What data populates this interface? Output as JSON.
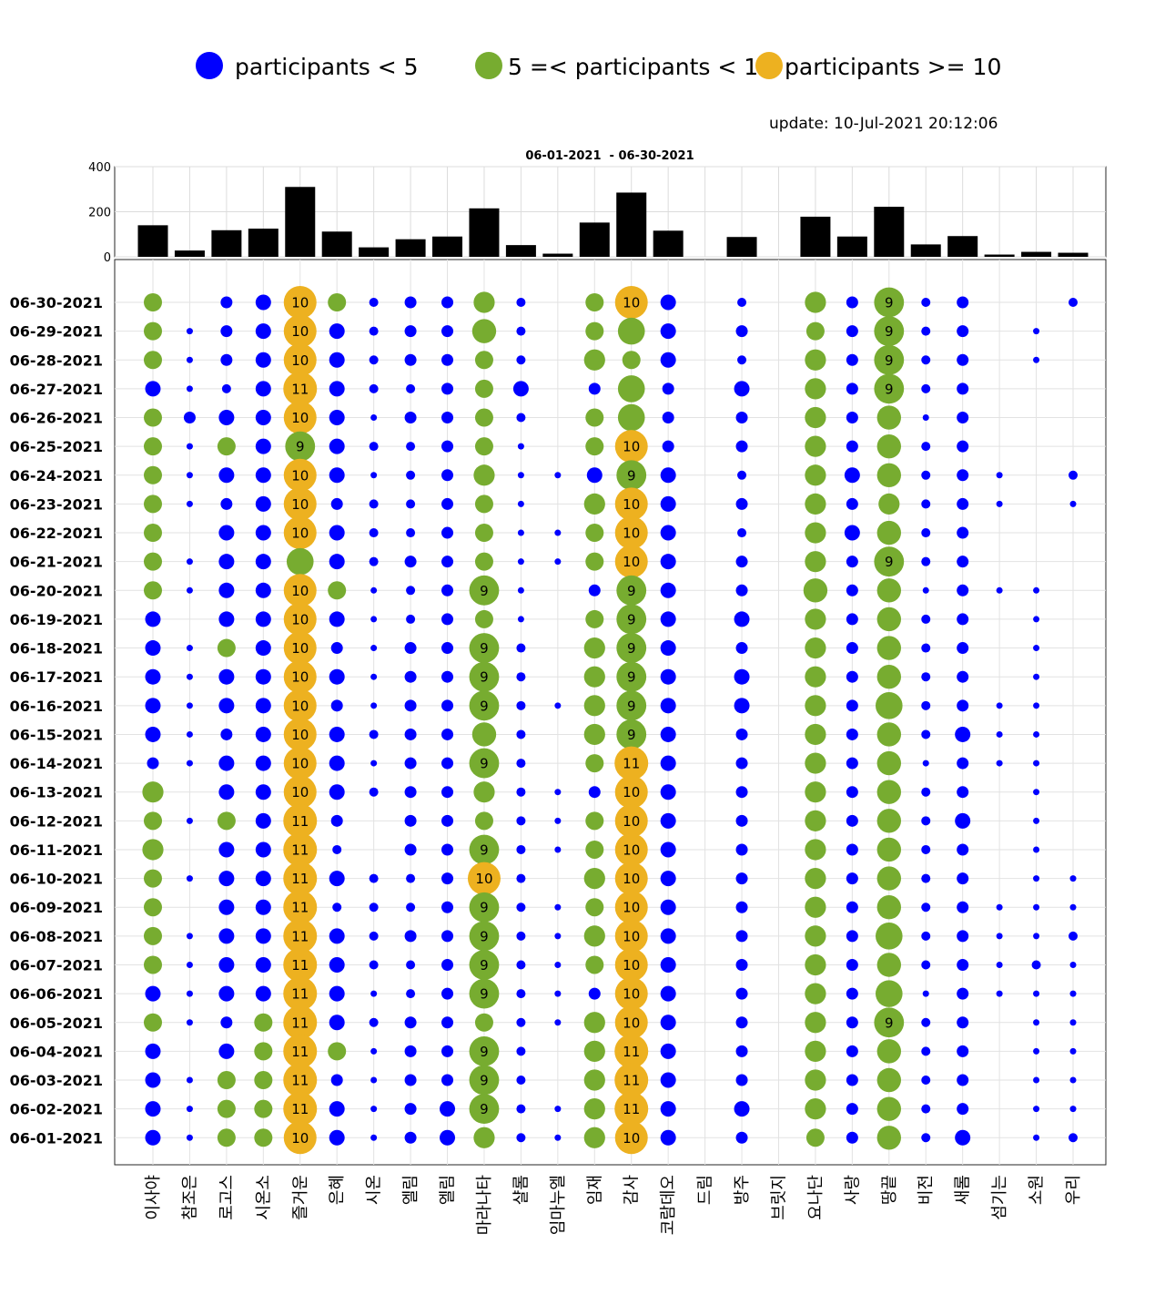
{
  "legend": {
    "items": [
      {
        "label": "participants < 5",
        "color": "#0000ff"
      },
      {
        "label": "5 =< participants < 10",
        "color": "#77ac30"
      },
      {
        "label": "participants >= 10",
        "color": "#edb120"
      }
    ]
  },
  "update_text": "update: 10-Jul-2021 20:12:06",
  "chart_data": [
    {
      "type": "bar",
      "title": "06-01-2021  - 06-30-2021",
      "ylim": [
        0,
        400
      ],
      "yticks": [
        0,
        200,
        400
      ],
      "grid": true,
      "categories": [
        "이사야",
        "참조은",
        "로고스",
        "시온소",
        "즐거운",
        "은혜",
        "시온",
        "엘림",
        "엘림",
        "마라나타",
        "샬롬",
        "임마누엘",
        "임재",
        "감사",
        "코람데오",
        "드림",
        "방주",
        "브릿지",
        "요나단",
        "사랑",
        "땅끝",
        "비전",
        "새롬",
        "섬기는",
        "소원",
        "우리"
      ],
      "values": [
        140,
        28,
        118,
        125,
        310,
        112,
        42,
        78,
        90,
        215,
        52,
        14,
        152,
        285,
        116,
        0,
        88,
        0,
        178,
        90,
        222,
        55,
        92,
        10,
        22,
        18
      ]
    },
    {
      "type": "scatter",
      "title": "",
      "categories": [
        "이사야",
        "참조은",
        "로고스",
        "시온소",
        "즐거운",
        "은혜",
        "시온",
        "엘림",
        "엘림",
        "마라나타",
        "샬롬",
        "임마누엘",
        "임재",
        "감사",
        "코람데오",
        "드림",
        "방주",
        "브릿지",
        "요나단",
        "사랑",
        "땅끝",
        "비전",
        "새롬",
        "섬기는",
        "소원",
        "우리"
      ],
      "dates": [
        "06-30-2021",
        "06-29-2021",
        "06-28-2021",
        "06-27-2021",
        "06-26-2021",
        "06-25-2021",
        "06-24-2021",
        "06-23-2021",
        "06-22-2021",
        "06-21-2021",
        "06-20-2021",
        "06-19-2021",
        "06-18-2021",
        "06-17-2021",
        "06-16-2021",
        "06-15-2021",
        "06-14-2021",
        "06-13-2021",
        "06-12-2021",
        "06-11-2021",
        "06-10-2021",
        "06-09-2021",
        "06-08-2021",
        "06-07-2021",
        "06-06-2021",
        "06-05-2021",
        "06-04-2021",
        "06-03-2021",
        "06-02-2021",
        "06-01-2021"
      ],
      "participants": [
        [
          5,
          0,
          3,
          4,
          10,
          5,
          2,
          3,
          3,
          6,
          2,
          0,
          5,
          10,
          4,
          0,
          2,
          0,
          6,
          3,
          9,
          2,
          3,
          0,
          0,
          2
        ],
        [
          5,
          1,
          3,
          4,
          10,
          4,
          2,
          3,
          3,
          7,
          2,
          0,
          5,
          8,
          4,
          0,
          3,
          0,
          5,
          3,
          9,
          2,
          3,
          0,
          1,
          0
        ],
        [
          5,
          1,
          3,
          4,
          10,
          4,
          2,
          3,
          3,
          5,
          2,
          0,
          6,
          5,
          4,
          0,
          2,
          0,
          6,
          3,
          9,
          2,
          3,
          0,
          1,
          0
        ],
        [
          4,
          1,
          2,
          4,
          11,
          4,
          2,
          2,
          3,
          5,
          4,
          0,
          3,
          8,
          3,
          0,
          4,
          0,
          6,
          3,
          9,
          2,
          3,
          0,
          0,
          0
        ],
        [
          5,
          3,
          4,
          4,
          10,
          4,
          1,
          3,
          3,
          5,
          2,
          0,
          5,
          8,
          3,
          0,
          3,
          0,
          6,
          3,
          7,
          1,
          3,
          0,
          0,
          0
        ],
        [
          5,
          1,
          5,
          4,
          9,
          4,
          2,
          2,
          3,
          5,
          1,
          0,
          5,
          10,
          3,
          0,
          3,
          0,
          6,
          3,
          7,
          2,
          3,
          0,
          0,
          0
        ],
        [
          5,
          1,
          4,
          4,
          10,
          4,
          1,
          2,
          3,
          6,
          1,
          1,
          4,
          9,
          4,
          0,
          2,
          0,
          6,
          4,
          7,
          2,
          3,
          1,
          0,
          2
        ],
        [
          5,
          1,
          3,
          4,
          10,
          3,
          2,
          2,
          3,
          5,
          1,
          0,
          6,
          10,
          4,
          0,
          3,
          0,
          6,
          3,
          6,
          2,
          3,
          1,
          0,
          1
        ],
        [
          5,
          0,
          4,
          4,
          10,
          4,
          2,
          2,
          3,
          5,
          1,
          1,
          5,
          10,
          4,
          0,
          2,
          0,
          6,
          4,
          7,
          2,
          3,
          0,
          0,
          0
        ],
        [
          5,
          1,
          4,
          4,
          8,
          4,
          2,
          3,
          3,
          5,
          1,
          1,
          5,
          10,
          4,
          0,
          3,
          0,
          6,
          3,
          9,
          2,
          3,
          0,
          0,
          0
        ],
        [
          5,
          1,
          4,
          4,
          10,
          5,
          1,
          2,
          3,
          9,
          1,
          0,
          3,
          9,
          4,
          0,
          3,
          0,
          7,
          3,
          7,
          1,
          3,
          1,
          1,
          0
        ],
        [
          4,
          0,
          4,
          4,
          10,
          4,
          1,
          2,
          3,
          5,
          1,
          0,
          5,
          9,
          4,
          0,
          4,
          0,
          6,
          3,
          7,
          2,
          3,
          0,
          1,
          0
        ],
        [
          4,
          1,
          5,
          4,
          10,
          3,
          1,
          3,
          3,
          9,
          2,
          0,
          6,
          9,
          4,
          0,
          3,
          0,
          6,
          3,
          7,
          2,
          3,
          0,
          1,
          0
        ],
        [
          4,
          1,
          4,
          4,
          10,
          4,
          1,
          3,
          3,
          9,
          2,
          0,
          6,
          9,
          4,
          0,
          4,
          0,
          6,
          3,
          7,
          2,
          3,
          0,
          1,
          0
        ],
        [
          4,
          1,
          4,
          4,
          10,
          3,
          1,
          3,
          3,
          9,
          2,
          1,
          6,
          9,
          4,
          0,
          4,
          0,
          6,
          3,
          8,
          2,
          3,
          1,
          1,
          0
        ],
        [
          4,
          1,
          3,
          4,
          10,
          4,
          2,
          3,
          3,
          7,
          2,
          0,
          6,
          9,
          4,
          0,
          3,
          0,
          6,
          3,
          7,
          2,
          4,
          1,
          1,
          0
        ],
        [
          3,
          1,
          4,
          4,
          10,
          4,
          1,
          3,
          3,
          9,
          2,
          0,
          5,
          11,
          4,
          0,
          3,
          0,
          6,
          3,
          7,
          1,
          3,
          1,
          1,
          0
        ],
        [
          6,
          0,
          4,
          4,
          10,
          4,
          2,
          3,
          3,
          6,
          2,
          1,
          3,
          10,
          4,
          0,
          3,
          0,
          6,
          3,
          7,
          2,
          3,
          0,
          1,
          0
        ],
        [
          5,
          1,
          5,
          4,
          11,
          3,
          0,
          3,
          3,
          5,
          2,
          1,
          5,
          10,
          4,
          0,
          3,
          0,
          6,
          3,
          7,
          2,
          4,
          0,
          1,
          0
        ],
        [
          6,
          0,
          4,
          4,
          11,
          2,
          0,
          3,
          3,
          9,
          2,
          1,
          5,
          10,
          4,
          0,
          3,
          0,
          6,
          3,
          7,
          2,
          3,
          0,
          1,
          0
        ],
        [
          5,
          1,
          4,
          4,
          11,
          4,
          2,
          2,
          3,
          10,
          2,
          0,
          6,
          10,
          4,
          0,
          3,
          0,
          6,
          3,
          7,
          2,
          3,
          0,
          1,
          1
        ],
        [
          5,
          0,
          4,
          4,
          11,
          2,
          2,
          2,
          3,
          9,
          2,
          1,
          5,
          10,
          4,
          0,
          3,
          0,
          6,
          3,
          7,
          2,
          3,
          1,
          1,
          1
        ],
        [
          5,
          1,
          4,
          4,
          11,
          4,
          2,
          3,
          3,
          9,
          2,
          1,
          6,
          10,
          4,
          0,
          3,
          0,
          6,
          3,
          8,
          2,
          3,
          1,
          1,
          2
        ],
        [
          5,
          1,
          4,
          4,
          11,
          4,
          2,
          2,
          3,
          9,
          2,
          1,
          5,
          10,
          4,
          0,
          3,
          0,
          6,
          3,
          7,
          2,
          3,
          1,
          2,
          1
        ],
        [
          4,
          1,
          4,
          4,
          11,
          4,
          1,
          2,
          3,
          9,
          2,
          1,
          3,
          10,
          4,
          0,
          3,
          0,
          6,
          3,
          8,
          1,
          3,
          1,
          1,
          1
        ],
        [
          5,
          1,
          3,
          5,
          11,
          4,
          2,
          3,
          3,
          5,
          2,
          1,
          6,
          10,
          4,
          0,
          3,
          0,
          6,
          3,
          9,
          2,
          3,
          0,
          1,
          1
        ],
        [
          4,
          0,
          4,
          5,
          11,
          5,
          1,
          3,
          3,
          9,
          2,
          0,
          6,
          11,
          4,
          0,
          3,
          0,
          6,
          3,
          7,
          2,
          3,
          0,
          1,
          1
        ],
        [
          4,
          1,
          5,
          5,
          11,
          3,
          1,
          3,
          3,
          9,
          2,
          0,
          6,
          11,
          4,
          0,
          3,
          0,
          6,
          3,
          7,
          2,
          3,
          0,
          1,
          1
        ],
        [
          4,
          1,
          5,
          5,
          11,
          4,
          1,
          3,
          4,
          9,
          2,
          1,
          6,
          11,
          4,
          0,
          4,
          0,
          6,
          3,
          7,
          2,
          3,
          0,
          1,
          1
        ],
        [
          4,
          1,
          5,
          5,
          10,
          4,
          1,
          3,
          4,
          6,
          2,
          1,
          6,
          10,
          4,
          0,
          3,
          0,
          5,
          3,
          7,
          2,
          4,
          0,
          1,
          2
        ]
      ],
      "shown_labels": {
        "min_value": 9
      },
      "grid": true
    }
  ]
}
